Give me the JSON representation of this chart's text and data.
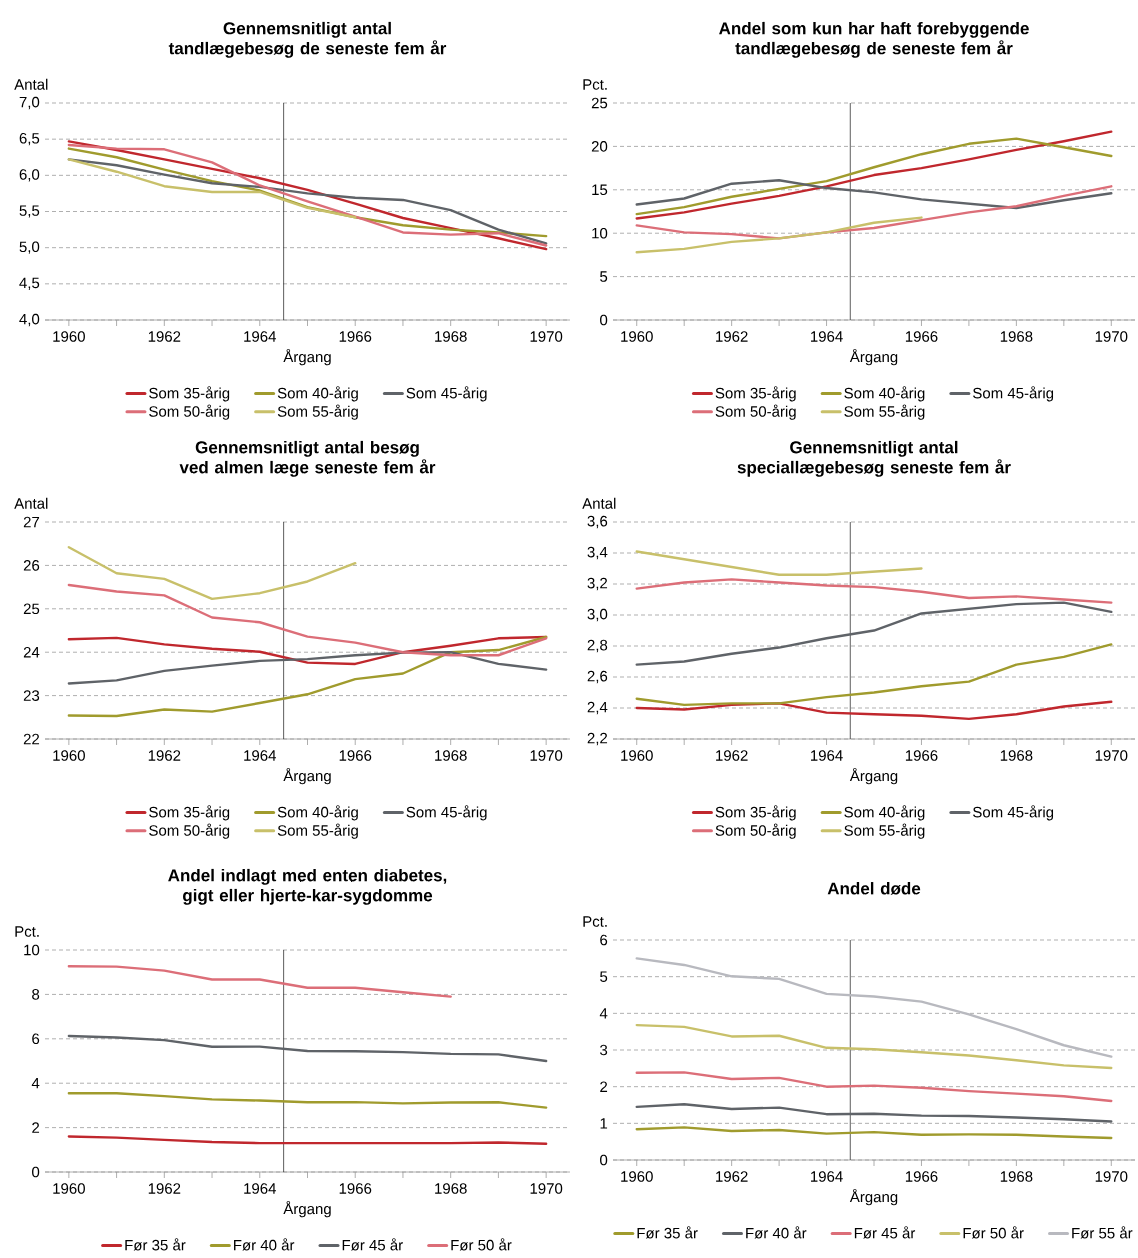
{
  "chart_data": [
    {
      "type": "line",
      "title": "Gennemsnitligt antal tandlægebesøg de seneste fem år",
      "ylabel": "Antal",
      "xlabel": "Årgang",
      "x": [
        1960,
        1961,
        1962,
        1963,
        1964,
        1965,
        1966,
        1967,
        1968,
        1969,
        1970
      ],
      "xlim": [
        1959.5,
        1970.5
      ],
      "xticks": [
        1960,
        1962,
        1964,
        1966,
        1968,
        1970
      ],
      "ylim": [
        4,
        7
      ],
      "yticks": [
        {
          "value": 4,
          "label": "4,0"
        },
        {
          "value": 4.5,
          "label": "4,5"
        },
        {
          "value": 5,
          "label": "5,0"
        },
        {
          "value": 5.5,
          "label": "5,5"
        },
        {
          "value": 6,
          "label": "6,0"
        },
        {
          "value": 6.5,
          "label": "6,5"
        },
        {
          "value": 7,
          "label": "7,0"
        }
      ],
      "grid": "y",
      "legend": "bottom",
      "ref_lines": [
        {
          "axis": "x",
          "value": 1964.5
        }
      ],
      "series": [
        {
          "name": "Som 35-årig",
          "color": "#c0272d",
          "values": [
            6.47,
            6.35,
            6.22,
            6.09,
            5.96,
            5.8,
            5.61,
            5.41,
            5.27,
            5.13,
            4.98
          ]
        },
        {
          "name": "Som 40-årig",
          "color": "#a09b2d",
          "values": [
            6.37,
            6.25,
            6.08,
            5.92,
            5.79,
            5.56,
            5.42,
            5.31,
            5.25,
            5.21,
            5.16
          ]
        },
        {
          "name": "Som 45-årig",
          "color": "#5f6368",
          "values": [
            6.22,
            6.14,
            6.01,
            5.89,
            5.84,
            5.75,
            5.69,
            5.66,
            5.52,
            5.25,
            5.06
          ]
        },
        {
          "name": "Som 50-årig",
          "color": "#dc6e78",
          "values": [
            6.42,
            6.37,
            6.36,
            6.18,
            5.86,
            5.64,
            5.43,
            5.21,
            5.18,
            5.2,
            5.03
          ]
        },
        {
          "name": "Som 55-årig",
          "color": "#c8c06a",
          "values": [
            6.22,
            6.05,
            5.85,
            5.77,
            5.77,
            5.55,
            5.42,
            null,
            null,
            null,
            null
          ]
        }
      ]
    },
    {
      "type": "line",
      "title": "Andel som kun har haft forebyggende tandlægebesøg de seneste fem år",
      "ylabel": "Pct.",
      "xlabel": "Årgang",
      "x": [
        1960,
        1961,
        1962,
        1963,
        1964,
        1965,
        1966,
        1967,
        1968,
        1969,
        1970
      ],
      "xlim": [
        1959.5,
        1970.5
      ],
      "xticks": [
        1960,
        1962,
        1964,
        1966,
        1968,
        1970
      ],
      "ylim": [
        0,
        25
      ],
      "yticks": [
        0,
        5,
        10,
        15,
        20,
        25
      ],
      "grid": "y",
      "legend": "bottom",
      "ref_lines": [
        {
          "axis": "x",
          "value": 1964.5
        }
      ],
      "series": [
        {
          "name": "Som 35-årig",
          "color": "#c0272d",
          "values": [
            11.7,
            12.4,
            13.4,
            14.3,
            15.4,
            16.7,
            17.5,
            18.5,
            19.6,
            20.6,
            21.7
          ]
        },
        {
          "name": "Som 40-årig",
          "color": "#a09b2d",
          "values": [
            12.2,
            13.0,
            14.2,
            15.1,
            16.0,
            17.6,
            19.1,
            20.3,
            20.9,
            19.9,
            18.9
          ]
        },
        {
          "name": "Som 45-årig",
          "color": "#5f6368",
          "values": [
            13.3,
            14.0,
            15.7,
            16.1,
            15.2,
            14.7,
            13.9,
            13.4,
            12.9,
            13.8,
            14.6
          ]
        },
        {
          "name": "Som 50-årig",
          "color": "#dc6e78",
          "values": [
            10.9,
            10.1,
            9.9,
            9.4,
            10.1,
            10.6,
            11.5,
            12.4,
            13.1,
            14.3,
            15.4
          ]
        },
        {
          "name": "Som 55-årig",
          "color": "#c8c06a",
          "values": [
            7.8,
            8.2,
            9.0,
            9.4,
            10.1,
            11.2,
            11.8,
            null,
            null,
            null,
            null
          ]
        }
      ]
    },
    {
      "type": "line",
      "title": "Gennemsnitligt antal besøg ved almen læge seneste fem år",
      "ylabel": "Antal",
      "xlabel": "Årgang",
      "x": [
        1960,
        1961,
        1962,
        1963,
        1964,
        1965,
        1966,
        1967,
        1968,
        1969,
        1970
      ],
      "xlim": [
        1959.5,
        1970.5
      ],
      "xticks": [
        1960,
        1962,
        1964,
        1966,
        1968,
        1970
      ],
      "ylim": [
        22,
        27
      ],
      "yticks": [
        22,
        23,
        24,
        25,
        26,
        27
      ],
      "grid": "y",
      "legend": "bottom",
      "ref_lines": [
        {
          "axis": "x",
          "value": 1964.5
        }
      ],
      "series": [
        {
          "name": "Som 35-årig",
          "color": "#c0272d",
          "values": [
            24.3,
            24.33,
            24.18,
            24.08,
            24.01,
            23.76,
            23.73,
            24.0,
            24.15,
            24.32,
            24.35
          ]
        },
        {
          "name": "Som 40-årig",
          "color": "#a09b2d",
          "values": [
            22.54,
            22.53,
            22.68,
            22.63,
            22.83,
            23.03,
            23.38,
            23.51,
            24.0,
            24.05,
            24.35
          ]
        },
        {
          "name": "Som 45-årig",
          "color": "#5f6368",
          "values": [
            23.28,
            23.35,
            23.57,
            23.69,
            23.8,
            23.84,
            23.93,
            23.99,
            24.0,
            23.73,
            23.6
          ]
        },
        {
          "name": "Som 50-årig",
          "color": "#dc6e78",
          "values": [
            25.55,
            25.4,
            25.31,
            24.8,
            24.69,
            24.36,
            24.22,
            24.0,
            23.93,
            23.93,
            24.32
          ]
        },
        {
          "name": "Som 55-årig",
          "color": "#c8c06a",
          "values": [
            26.42,
            25.82,
            25.69,
            25.23,
            25.36,
            25.63,
            26.05,
            null,
            null,
            null,
            null
          ]
        }
      ]
    },
    {
      "type": "line",
      "title": "Gennemsnitligt antal speciallægebesøg seneste fem år",
      "ylabel": "Antal",
      "xlabel": "Årgang",
      "x": [
        1960,
        1961,
        1962,
        1963,
        1964,
        1965,
        1966,
        1967,
        1968,
        1969,
        1970
      ],
      "xlim": [
        1959.5,
        1970.5
      ],
      "xticks": [
        1960,
        1962,
        1964,
        1966,
        1968,
        1970
      ],
      "ylim": [
        2.2,
        3.6
      ],
      "yticks": [
        {
          "value": 2.2,
          "label": "2,2"
        },
        {
          "value": 2.4,
          "label": "2,4"
        },
        {
          "value": 2.6,
          "label": "2,6"
        },
        {
          "value": 2.8,
          "label": "2,8"
        },
        {
          "value": 3.0,
          "label": "3,0"
        },
        {
          "value": 3.2,
          "label": "3,2"
        },
        {
          "value": 3.4,
          "label": "3,4"
        },
        {
          "value": 3.6,
          "label": "3,6"
        }
      ],
      "grid": "y",
      "legend": "bottom",
      "ref_lines": [
        {
          "axis": "x",
          "value": 1964.5
        }
      ],
      "series": [
        {
          "name": "Som 35-årig",
          "color": "#c0272d",
          "values": [
            2.4,
            2.39,
            2.42,
            2.43,
            2.37,
            2.36,
            2.35,
            2.33,
            2.36,
            2.41,
            2.44
          ]
        },
        {
          "name": "Som 40-årig",
          "color": "#a09b2d",
          "values": [
            2.46,
            2.42,
            2.43,
            2.43,
            2.47,
            2.5,
            2.54,
            2.57,
            2.68,
            2.73,
            2.81
          ]
        },
        {
          "name": "Som 45-årig",
          "color": "#5f6368",
          "values": [
            2.68,
            2.7,
            2.75,
            2.79,
            2.85,
            2.9,
            3.01,
            3.04,
            3.07,
            3.08,
            3.02
          ]
        },
        {
          "name": "Som 50-årig",
          "color": "#dc6e78",
          "values": [
            3.17,
            3.21,
            3.23,
            3.21,
            3.19,
            3.18,
            3.15,
            3.11,
            3.12,
            3.1,
            3.08
          ]
        },
        {
          "name": "Som 55-årig",
          "color": "#c8c06a",
          "values": [
            3.41,
            3.36,
            3.31,
            3.26,
            3.26,
            3.28,
            3.3,
            null,
            null,
            null,
            null
          ]
        }
      ]
    },
    {
      "type": "line",
      "title": "Andel indlagt med enten diabetes, gigt eller hjerte-kar-sygdomme",
      "ylabel": "Pct.",
      "xlabel": "Årgang",
      "x": [
        1960,
        1961,
        1962,
        1963,
        1964,
        1965,
        1966,
        1967,
        1968,
        1969,
        1970
      ],
      "xlim": [
        1959.5,
        1970.5
      ],
      "xticks": [
        1960,
        1962,
        1964,
        1966,
        1968,
        1970
      ],
      "ylim": [
        0,
        10
      ],
      "yticks": [
        0,
        2,
        4,
        6,
        8,
        10
      ],
      "grid": "y",
      "legend": "bottom",
      "ref_lines": [
        {
          "axis": "x",
          "value": 1964.5
        }
      ],
      "series": [
        {
          "name": "Før 35 år",
          "color": "#c0272d",
          "values": [
            1.6,
            1.55,
            1.45,
            1.35,
            1.3,
            1.3,
            1.3,
            1.3,
            1.3,
            1.33,
            1.27
          ]
        },
        {
          "name": "Før 40 år",
          "color": "#a09b2d",
          "values": [
            3.55,
            3.55,
            3.42,
            3.27,
            3.22,
            3.14,
            3.15,
            3.09,
            3.13,
            3.14,
            2.9
          ]
        },
        {
          "name": "Før 45 år",
          "color": "#5f6368",
          "values": [
            6.13,
            6.06,
            5.94,
            5.64,
            5.65,
            5.45,
            5.44,
            5.4,
            5.32,
            5.3,
            5.0
          ]
        },
        {
          "name": "Før 50 år",
          "color": "#dc6e78",
          "values": [
            9.27,
            9.25,
            9.07,
            8.67,
            8.67,
            8.3,
            8.3,
            8.1,
            7.9,
            null,
            null
          ]
        }
      ]
    },
    {
      "type": "line",
      "title": "Andel døde",
      "ylabel": "Pct.",
      "xlabel": "Årgang",
      "x": [
        1960,
        1961,
        1962,
        1963,
        1964,
        1965,
        1966,
        1967,
        1968,
        1969,
        1970
      ],
      "xlim": [
        1959.5,
        1970.5
      ],
      "xticks": [
        1960,
        1962,
        1964,
        1966,
        1968,
        1970
      ],
      "ylim": [
        0,
        6
      ],
      "yticks": [
        0,
        1,
        2,
        3,
        4,
        5,
        6
      ],
      "grid": "y",
      "legend": "bottom",
      "ref_lines": [
        {
          "axis": "x",
          "value": 1964.5
        }
      ],
      "series": [
        {
          "name": "Før 35 år",
          "color": "#a09b2d",
          "values": [
            0.84,
            0.89,
            0.79,
            0.82,
            0.72,
            0.76,
            0.69,
            0.7,
            0.69,
            0.64,
            0.6
          ]
        },
        {
          "name": "Før 40 år",
          "color": "#5f6368",
          "values": [
            1.45,
            1.52,
            1.39,
            1.43,
            1.25,
            1.26,
            1.21,
            1.2,
            1.16,
            1.11,
            1.05
          ]
        },
        {
          "name": "Før 45 år",
          "color": "#dc6e78",
          "values": [
            2.38,
            2.39,
            2.21,
            2.24,
            2.0,
            2.03,
            1.97,
            1.88,
            1.81,
            1.74,
            1.61
          ]
        },
        {
          "name": "Før 50 år",
          "color": "#c8c06a",
          "values": [
            3.68,
            3.63,
            3.37,
            3.39,
            3.06,
            3.02,
            2.94,
            2.85,
            2.72,
            2.58,
            2.51
          ]
        },
        {
          "name": "Før 55 år",
          "color": "#b8b9bf",
          "values": [
            5.5,
            5.32,
            5.01,
            4.94,
            4.53,
            4.46,
            4.32,
            3.97,
            3.57,
            3.13,
            2.82
          ]
        }
      ]
    }
  ]
}
